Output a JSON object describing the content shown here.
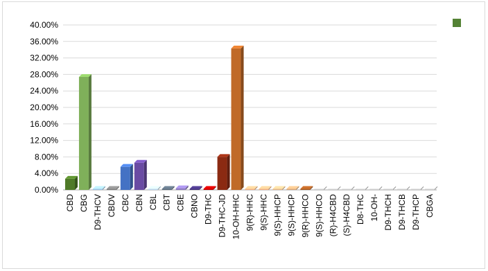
{
  "chart_data": {
    "type": "bar",
    "style": "3d-column",
    "title": "",
    "xlabel": "",
    "ylabel": "",
    "ylim": [
      0,
      0.4
    ],
    "y_ticks": [
      "40.00%",
      "36.00%",
      "32.00%",
      "28.00%",
      "24.00%",
      "20.00%",
      "16.00%",
      "12.00%",
      "8.00%",
      "4.00%",
      "0.00%"
    ],
    "grid": true,
    "legend": {
      "position": "top-right",
      "entries": [
        ""
      ]
    },
    "categories": [
      "CBD",
      "CBG",
      "D9-THCV",
      "CBDV",
      "CBC",
      "CBN",
      "CBL",
      "CBT",
      "CBE",
      "CBNO",
      "D9-THC",
      "D9-THC-JD",
      "10-OH-HHC",
      "9(R)-HHC",
      "9(S)-HHC",
      "9(S)-HHCP",
      "9(S)-HHCP",
      "9(R)-HHCO",
      "9(S)-HHCO",
      "(R)-H4CBD",
      "(S)-H4CBD",
      "D8-THC",
      "10-OH-",
      "D9-THCH",
      "D9-THCB",
      "D9-THCP",
      "CBGA"
    ],
    "values": [
      0.027,
      0.274,
      0.001,
      0.001,
      0.056,
      0.066,
      0.001,
      0.001,
      0.004,
      0.001,
      0.001,
      0.08,
      0.343,
      0.001,
      0.001,
      0.001,
      0.001,
      0.001,
      0,
      0,
      0,
      0,
      0,
      0,
      0,
      0,
      0
    ],
    "colors": [
      "#4f7a28",
      "#7fb05a",
      "#9dc3e6",
      "#7f7f7f",
      "#4472c4",
      "#6a4ba3",
      "#bdd7ee",
      "#5b6b7a",
      "#8e7cc3",
      "#44337a",
      "#c00000",
      "#8b2a12",
      "#c06a28",
      "#f4b183",
      "#f4b183",
      "#e6b88a",
      "#d9a77a",
      "#a65c24",
      "#cccccc",
      "#cccccc",
      "#cccccc",
      "#cccccc",
      "#cccccc",
      "#cccccc",
      "#cccccc",
      "#cccccc",
      "#cccccc"
    ],
    "legend_color": "#548235"
  }
}
